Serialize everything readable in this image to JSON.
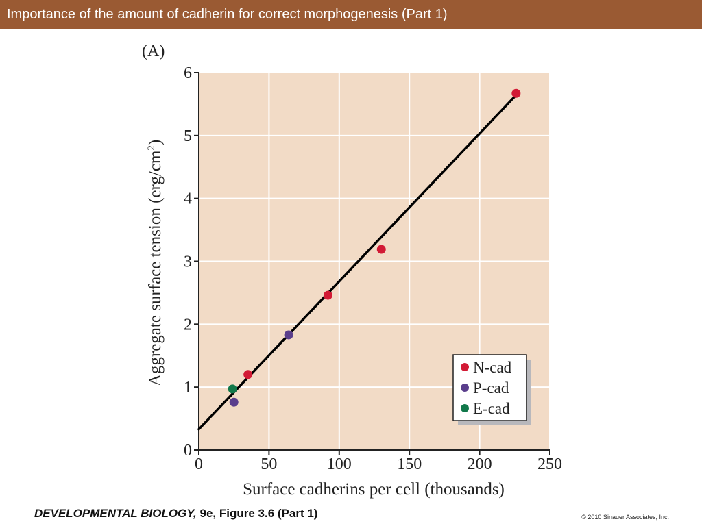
{
  "header": {
    "title": "Importance of the amount of cadherin for correct morphogenesis (Part 1)"
  },
  "footer": {
    "book_title": "DEVELOPMENTAL BIOLOGY,",
    "edition_figure": " 9e, Figure 3.6 (Part 1)",
    "copyright": "© 2010 Sinauer Associates, Inc."
  },
  "chart_data": {
    "type": "scatter",
    "panel_label": "(A)",
    "xlabel": "Surface cadherins per cell (thousands)",
    "ylabel": "Aggregate surface tension (erg/cm",
    "ylabel_superscript": "2",
    "ylabel_close": ")",
    "xlim": [
      0,
      250
    ],
    "ylim": [
      0,
      6
    ],
    "xticks": [
      0,
      50,
      100,
      150,
      200,
      250
    ],
    "yticks": [
      0,
      1,
      2,
      3,
      4,
      5,
      6
    ],
    "grid": true,
    "legend_position": "bottom-right",
    "background_color": "#f2dbc6",
    "series": [
      {
        "name": "N-cad",
        "color": "#d21a35",
        "points": [
          [
            35,
            1.2
          ],
          [
            92,
            2.46
          ],
          [
            130,
            3.19
          ],
          [
            226,
            5.67
          ]
        ]
      },
      {
        "name": "P-cad",
        "color": "#5a3e8c",
        "points": [
          [
            25,
            0.76
          ],
          [
            64,
            1.83
          ]
        ]
      },
      {
        "name": "E-cad",
        "color": "#11784a",
        "points": [
          [
            24,
            0.97
          ]
        ]
      }
    ],
    "fit_line": {
      "x": [
        0,
        225
      ],
      "y": [
        0.33,
        5.62
      ],
      "color": "#000000"
    }
  }
}
